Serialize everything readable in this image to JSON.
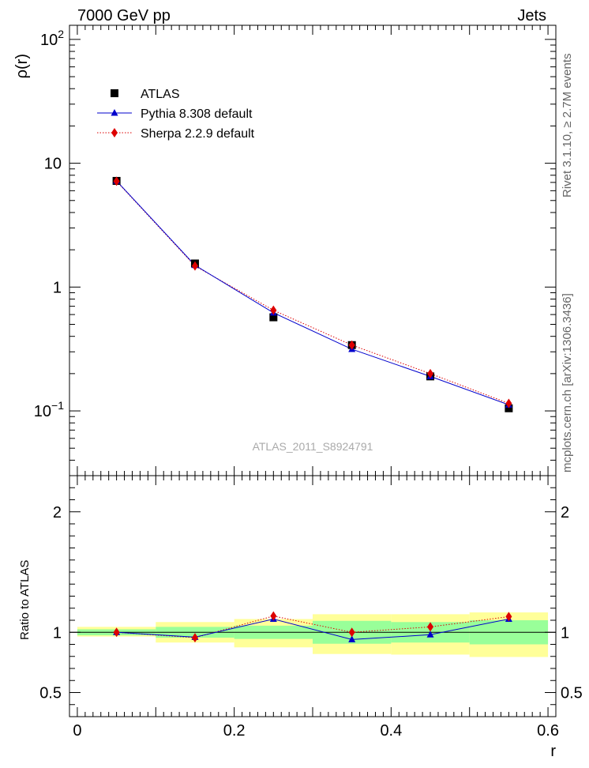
{
  "header": {
    "left": "7000 GeV pp",
    "right": "Jets"
  },
  "side_labels": {
    "rivet": "Rivet 3.1.10, ≥ 2.7M events",
    "mcplots": "mcplots.cern.ch [arXiv:1306.3436]"
  },
  "watermark": "ATLAS_2011_S8924791",
  "colors": {
    "atlas": "#000000",
    "pythia": "#0000cc",
    "sherpa": "#dd0000",
    "band_inner": "#99ff99",
    "band_outer": "#ffff99"
  },
  "chart_data": [
    {
      "type": "scatter",
      "panel": "main",
      "ylabel": "ρ(r)",
      "yscale": "log",
      "ylim": [
        0.03,
        130
      ],
      "xlim": [
        -0.01,
        0.61
      ],
      "y_ticks": [
        {
          "value": 0.1,
          "base": "10",
          "exp": "−1"
        },
        {
          "value": 1,
          "label": "1"
        },
        {
          "value": 10,
          "label": "10"
        },
        {
          "value": 100,
          "base": "10",
          "exp": "2"
        }
      ],
      "legend_position": "top-left",
      "x": [
        0.05,
        0.15,
        0.25,
        0.35,
        0.45,
        0.55
      ],
      "series": [
        {
          "name": "ATLAS",
          "values": [
            7.2,
            1.55,
            0.57,
            0.34,
            0.19,
            0.105
          ],
          "style": "square-marker"
        },
        {
          "name": "Pythia 8.308 default",
          "values": [
            7.2,
            1.5,
            0.62,
            0.315,
            0.19,
            0.112
          ],
          "style": "line-triangle"
        },
        {
          "name": "Sherpa 2.2.9 default",
          "values": [
            7.15,
            1.48,
            0.65,
            0.34,
            0.2,
            0.115
          ],
          "style": "dotted-diamond"
        }
      ]
    },
    {
      "type": "line",
      "panel": "ratio",
      "ylabel": "Ratio to ATLAS",
      "xlabel": "r",
      "ylim": [
        0.3,
        2.3
      ],
      "xlim": [
        -0.01,
        0.61
      ],
      "y_ticks": [
        0.5,
        1,
        2
      ],
      "x_ticks": [
        0,
        0.2,
        0.4,
        0.6
      ],
      "bins": [
        {
          "x0": 0.0,
          "x1": 0.1,
          "inner": [
            0.975,
            1.025
          ],
          "outer": [
            0.965,
            1.045
          ]
        },
        {
          "x0": 0.1,
          "x1": 0.2,
          "inner": [
            0.955,
            1.045
          ],
          "outer": [
            0.915,
            1.085
          ]
        },
        {
          "x0": 0.2,
          "x1": 0.3,
          "inner": [
            0.945,
            1.055
          ],
          "outer": [
            0.875,
            1.11
          ]
        },
        {
          "x0": 0.3,
          "x1": 0.4,
          "inner": [
            0.905,
            1.095
          ],
          "outer": [
            0.82,
            1.15
          ]
        },
        {
          "x0": 0.4,
          "x1": 0.5,
          "inner": [
            0.915,
            1.085
          ],
          "outer": [
            0.815,
            1.15
          ]
        },
        {
          "x0": 0.5,
          "x1": 0.6,
          "inner": [
            0.9,
            1.1
          ],
          "outer": [
            0.795,
            1.165
          ]
        }
      ],
      "x": [
        0.05,
        0.15,
        0.25,
        0.35,
        0.45,
        0.55
      ],
      "series": [
        {
          "name": "Pythia 8.308 default",
          "values": [
            1.0,
            0.96,
            1.11,
            0.94,
            0.98,
            1.11
          ]
        },
        {
          "name": "Sherpa 2.2.9 default",
          "values": [
            1.0,
            0.955,
            1.135,
            1.0,
            1.045,
            1.13
          ]
        }
      ]
    }
  ]
}
